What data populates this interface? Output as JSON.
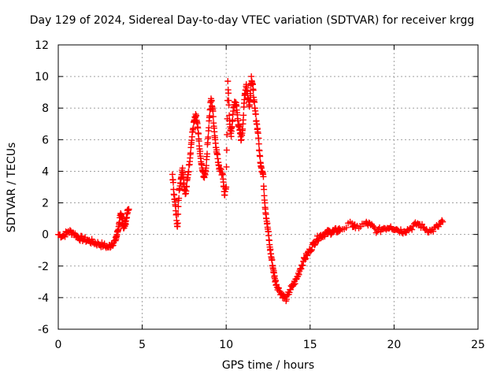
{
  "chart_data": {
    "type": "scatter",
    "title": "Day 129 of 2024, Sidereal Day-to-day VTEC variation (SDTVAR) for receiver krgg",
    "xlabel": "GPS time / hours",
    "ylabel": "SDTVAR / TECUs",
    "xlim": [
      0,
      25
    ],
    "ylim": [
      -6,
      12
    ],
    "xticks": [
      0,
      5,
      10,
      15,
      20,
      25
    ],
    "yticks": [
      -6,
      -4,
      -2,
      0,
      2,
      4,
      6,
      8,
      10,
      12
    ],
    "grid": true,
    "marker": "+",
    "color": "#ff0000",
    "series": [
      {
        "name": "SDTVAR",
        "x": [
          0.0,
          0.3,
          0.6,
          0.9,
          1.2,
          1.5,
          1.8,
          2.1,
          2.4,
          2.7,
          3.0,
          3.2,
          3.4,
          3.5,
          3.6,
          3.7,
          3.8,
          3.9,
          4.0,
          4.1,
          4.2,
          6.8,
          6.9,
          7.0,
          7.1,
          7.2,
          7.3,
          7.4,
          7.5,
          7.6,
          7.7,
          7.8,
          7.9,
          8.0,
          8.1,
          8.2,
          8.3,
          8.4,
          8.5,
          8.6,
          8.7,
          8.8,
          8.9,
          9.0,
          9.1,
          9.2,
          9.3,
          9.4,
          9.5,
          9.6,
          9.8,
          9.9,
          10.0,
          10.1,
          10.2,
          10.3,
          10.4,
          10.5,
          10.6,
          10.7,
          10.8,
          10.9,
          11.0,
          11.1,
          11.2,
          11.3,
          11.4,
          11.5,
          11.6,
          11.7,
          11.8,
          11.9,
          12.0,
          12.1,
          12.2,
          12.3,
          12.4,
          12.5,
          12.6,
          12.7,
          12.8,
          12.9,
          13.0,
          13.2,
          13.4,
          13.6,
          13.8,
          14.0,
          14.2,
          14.4,
          14.6,
          14.8,
          15.0,
          15.2,
          15.4,
          15.6,
          15.8,
          16.0,
          16.2,
          16.4,
          16.6,
          16.8,
          17.5,
          17.7,
          18.3,
          18.6,
          19.0,
          19.4,
          19.8,
          20.2,
          20.6,
          21.0,
          21.4,
          21.8,
          22.2,
          22.6,
          22.9
        ],
        "y": [
          0.0,
          -0.1,
          0.2,
          0.1,
          -0.2,
          -0.3,
          -0.4,
          -0.5,
          -0.6,
          -0.7,
          -0.8,
          -0.6,
          -0.4,
          0.0,
          0.5,
          1.2,
          1.0,
          0.4,
          0.7,
          1.3,
          1.6,
          3.8,
          2.5,
          1.5,
          0.5,
          2.8,
          3.5,
          4.2,
          3.0,
          2.6,
          3.6,
          4.4,
          5.5,
          6.5,
          7.2,
          7.5,
          6.8,
          5.6,
          4.6,
          4.0,
          3.6,
          4.2,
          5.8,
          7.4,
          8.6,
          7.9,
          6.5,
          5.5,
          4.8,
          4.2,
          3.8,
          2.5,
          3.0,
          9.7,
          7.2,
          6.2,
          7.6,
          8.4,
          8.2,
          7.2,
          6.6,
          6.0,
          7.0,
          8.8,
          9.5,
          8.6,
          8.2,
          10.0,
          9.2,
          8.0,
          7.2,
          6.4,
          5.0,
          4.2,
          3.8,
          2.0,
          1.0,
          0.2,
          -0.8,
          -1.5,
          -2.2,
          -2.8,
          -3.2,
          -3.6,
          -3.9,
          -4.1,
          -3.5,
          -3.2,
          -2.8,
          -2.2,
          -1.7,
          -1.3,
          -1.0,
          -0.6,
          -0.3,
          -0.1,
          0.0,
          0.1,
          0.15,
          0.2,
          0.25,
          0.3,
          0.7,
          0.4,
          0.7,
          0.6,
          0.2,
          0.4,
          0.5,
          0.3,
          0.2,
          0.4,
          0.7,
          0.4,
          0.2,
          0.5,
          0.8
        ]
      }
    ]
  }
}
